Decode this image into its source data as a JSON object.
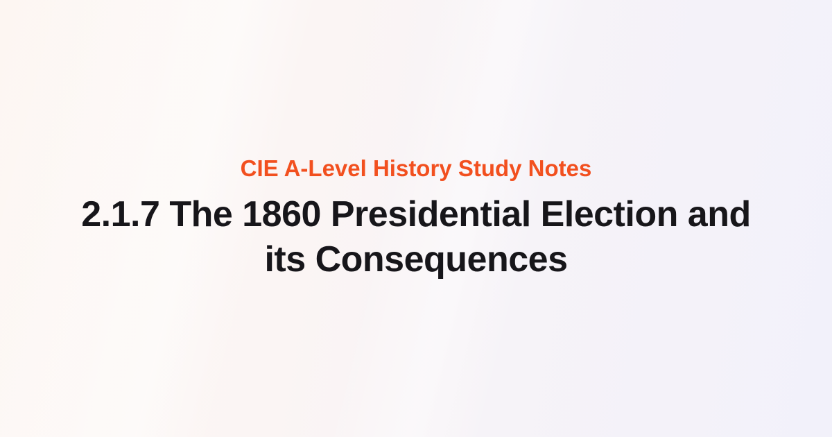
{
  "page": {
    "eyebrow": "CIE A-Level History Study Notes",
    "title_lines": {
      "0": "2.1.7 The 1860 Presidential Election and",
      "1": "its Consequences"
    },
    "colors": {
      "accent_orange": "#F2501F",
      "title_text": "#17161A",
      "background_left": "#FDF6F2",
      "background_right": "#F2F1FA"
    }
  }
}
